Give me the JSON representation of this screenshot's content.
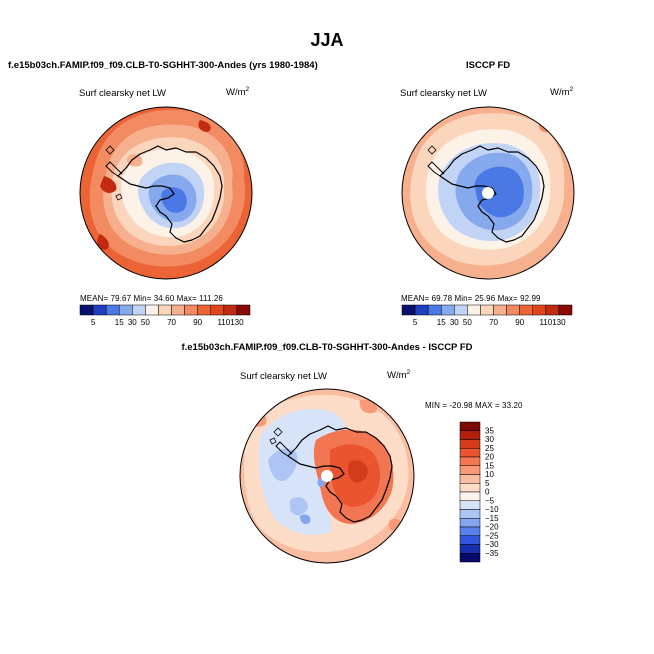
{
  "page": {
    "title": "JJA",
    "model_label": "f.e15b03ch.FAMIP.f09_f09.CLB-T0-SGHHT-300-Andes (yrs 1980-1984)",
    "obs_label": "ISCCP FD",
    "diff_label": "f.e15b03ch.FAMIP.f09_f09.CLB-T0-SGHHT-300-Andes - ISCCP FD"
  },
  "colors": {
    "abs_scale": [
      "#08126e",
      "#1f3ec0",
      "#4a79e6",
      "#86a9ee",
      "#c2d4f5",
      "#fdf2e8",
      "#fbd6bd",
      "#f7b08e",
      "#f28a62",
      "#ec6436",
      "#e2441b",
      "#c22a12",
      "#8a0b06"
    ],
    "diff_scale": [
      "#060a6c",
      "#1a2fb0",
      "#3156dc",
      "#5a80ec",
      "#85a5f0",
      "#adc4f4",
      "#d6e3f8",
      "#fbf4ee",
      "#fddcc8",
      "#fbbda1",
      "#f89a78",
      "#f27651",
      "#ea5530",
      "#d43b1a",
      "#b2200d",
      "#7e0805"
    ],
    "coast": "#000000"
  },
  "chart_data": [
    {
      "type": "heatmap",
      "id": "model",
      "projection": "south-polar-stereographic",
      "title": "Surf clearsky net LW",
      "units_base": "W/m",
      "units_exp": "2",
      "stats_text": "MEAN=   79.67    Min=   34.60    Max=  111.26",
      "mean": 79.67,
      "min": 34.6,
      "max": 111.26,
      "colorbar_labels": [
        "5",
        "15",
        "30",
        "50",
        "70",
        "90",
        "110",
        "130"
      ],
      "colorbar_levels": [
        5,
        15,
        20,
        30,
        40,
        50,
        60,
        70,
        80,
        90,
        100,
        110,
        130
      ]
    },
    {
      "type": "heatmap",
      "id": "obs",
      "projection": "south-polar-stereographic",
      "title": "Surf clearsky net LW",
      "units_base": "W/m",
      "units_exp": "2",
      "stats_text": "MEAN=   69.78    Min=   25.96    Max=   92.99",
      "mean": 69.78,
      "min": 25.96,
      "max": 92.99,
      "colorbar_labels": [
        "5",
        "15",
        "30",
        "50",
        "70",
        "90",
        "110",
        "130"
      ],
      "colorbar_levels": [
        5,
        15,
        20,
        30,
        40,
        50,
        60,
        70,
        80,
        90,
        100,
        110,
        130
      ]
    },
    {
      "type": "heatmap",
      "id": "diff",
      "projection": "south-polar-stereographic",
      "title": "Surf clearsky net LW",
      "units_base": "W/m",
      "units_exp": "2",
      "stats_text": "MIN = -20.98  MAX =   33.20",
      "min": -20.98,
      "max": 33.2,
      "colorbar_labels": [
        "35",
        "30",
        "25",
        "20",
        "15",
        "10",
        "5",
        "0",
        "−5",
        "−10",
        "−15",
        "−20",
        "−25",
        "−30",
        "−35"
      ]
    }
  ]
}
